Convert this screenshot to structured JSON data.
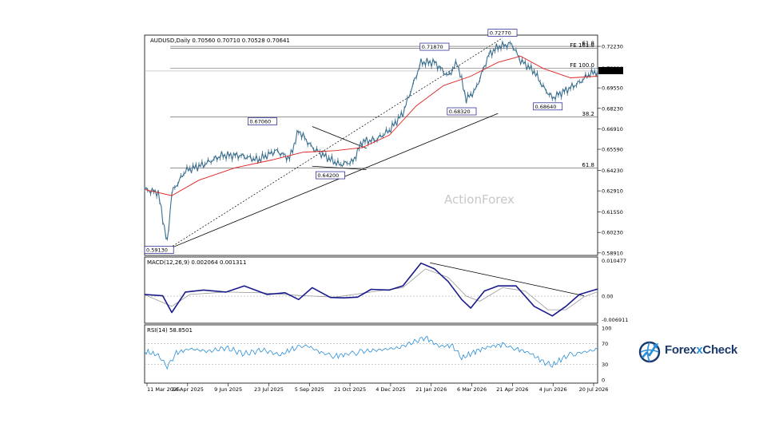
{
  "brand": {
    "name_a": "Forex",
    "name_x": "x",
    "name_b": "Check",
    "icon": "globe-chart-logo-icon"
  },
  "colors": {
    "price": "#3a6e8f",
    "ma": "#e02020",
    "macd": "#1a1a8c",
    "signal": "#9a9a9a",
    "rsi": "#2a8fd8",
    "trend": "#000000"
  },
  "chart_data": [
    {
      "type": "line",
      "title": "AUDUSD,Daily  0.70560 0.70710 0.70528 0.70641",
      "watermark": "ActionForex",
      "symbol": "AUDUSD,Daily",
      "ohlc_header": "0.70560 0.70710 0.70528 0.70641",
      "current_price_label": "0.70641",
      "ylim": [
        0.5885,
        0.7285
      ],
      "y_ticks": [
        "0.72230",
        "0.70810",
        "0.69550",
        "0.68230",
        "0.66910",
        "0.65590",
        "0.64230",
        "0.62910",
        "0.61550",
        "0.60230",
        "0.58910"
      ],
      "x_ticks": [
        "11 Mar 2025",
        "24 Apr 2025",
        "9 Jun 2025",
        "23 Jul 2025",
        "5 Sep 2025",
        "21 Oct 2025",
        "4 Dec 2025",
        "21 Jan 2026",
        "6 Mar 2026",
        "21 Apr 2026",
        "4 Jun 2026",
        "20 Jul 2026"
      ],
      "annotations": [
        {
          "text": "0.59130",
          "x": 0.0,
          "y": 0.5913
        },
        {
          "text": "0.67060",
          "x": 0.26,
          "y": 0.6706
        },
        {
          "text": "0.64200",
          "x": 0.41,
          "y": 0.642
        },
        {
          "text": "0.71870",
          "x": 0.64,
          "y": 0.7187
        },
        {
          "text": "0.68320",
          "x": 0.7,
          "y": 0.6832
        },
        {
          "text": "0.72770",
          "x": 0.79,
          "y": 0.7277
        },
        {
          "text": "0.68640",
          "x": 0.89,
          "y": 0.6864
        }
      ],
      "fib_lines": [
        {
          "label": "61.8",
          "value": 0.7223
        },
        {
          "label": "FE 161.8",
          "value": 0.721
        },
        {
          "label": "FE 100.0",
          "value": 0.7081
        },
        {
          "label": "38.2",
          "value": 0.6768
        },
        {
          "label": "61.8",
          "value": 0.6438
        }
      ],
      "series": [
        {
          "name": "Price",
          "values": [
            [
              0.0,
              0.63
            ],
            [
              0.03,
              0.628
            ],
            [
              0.05,
              0.595
            ],
            [
              0.06,
              0.628
            ],
            [
              0.09,
              0.642
            ],
            [
              0.13,
              0.646
            ],
            [
              0.17,
              0.652
            ],
            [
              0.21,
              0.652
            ],
            [
              0.25,
              0.649
            ],
            [
              0.29,
              0.655
            ],
            [
              0.32,
              0.65
            ],
            [
              0.34,
              0.668
            ],
            [
              0.37,
              0.657
            ],
            [
              0.4,
              0.651
            ],
            [
              0.43,
              0.646
            ],
            [
              0.46,
              0.648
            ],
            [
              0.48,
              0.661
            ],
            [
              0.51,
              0.662
            ],
            [
              0.54,
              0.668
            ],
            [
              0.57,
              0.679
            ],
            [
              0.61,
              0.712
            ],
            [
              0.64,
              0.712
            ],
            [
              0.67,
              0.703
            ],
            [
              0.69,
              0.712
            ],
            [
              0.71,
              0.688
            ],
            [
              0.73,
              0.694
            ],
            [
              0.76,
              0.717
            ],
            [
              0.78,
              0.722
            ],
            [
              0.81,
              0.724
            ],
            [
              0.83,
              0.713
            ],
            [
              0.86,
              0.706
            ],
            [
              0.88,
              0.696
            ],
            [
              0.9,
              0.689
            ],
            [
              0.93,
              0.694
            ],
            [
              0.96,
              0.699
            ],
            [
              0.98,
              0.704
            ],
            [
              1.0,
              0.7064
            ]
          ]
        },
        {
          "name": "MA",
          "values": [
            [
              0.0,
              0.63
            ],
            [
              0.06,
              0.626
            ],
            [
              0.12,
              0.636
            ],
            [
              0.2,
              0.644
            ],
            [
              0.28,
              0.649
            ],
            [
              0.35,
              0.654
            ],
            [
              0.42,
              0.655
            ],
            [
              0.48,
              0.657
            ],
            [
              0.54,
              0.665
            ],
            [
              0.6,
              0.684
            ],
            [
              0.66,
              0.697
            ],
            [
              0.72,
              0.703
            ],
            [
              0.78,
              0.712
            ],
            [
              0.83,
              0.716
            ],
            [
              0.88,
              0.708
            ],
            [
              0.94,
              0.702
            ],
            [
              1.0,
              0.703
            ]
          ]
        }
      ]
    },
    {
      "type": "line",
      "title": "MACD(12,26,9) 0.002064 0.001311",
      "ylim": [
        -0.0075,
        0.0108
      ],
      "y_ticks": [
        "0.010477",
        "0.00",
        "-0.006911"
      ],
      "series": [
        {
          "name": "MACD",
          "values": [
            [
              0.0,
              0.0005
            ],
            [
              0.04,
              0.0001
            ],
            [
              0.06,
              -0.0048
            ],
            [
              0.09,
              0.0012
            ],
            [
              0.13,
              0.0018
            ],
            [
              0.18,
              0.0012
            ],
            [
              0.22,
              0.003
            ],
            [
              0.27,
              0.0005
            ],
            [
              0.31,
              0.001
            ],
            [
              0.34,
              -0.001
            ],
            [
              0.37,
              0.0025
            ],
            [
              0.41,
              -0.0004
            ],
            [
              0.44,
              -0.0005
            ],
            [
              0.47,
              -0.0003
            ],
            [
              0.5,
              0.002
            ],
            [
              0.54,
              0.0018
            ],
            [
              0.57,
              0.003
            ],
            [
              0.61,
              0.0097
            ],
            [
              0.64,
              0.008
            ],
            [
              0.67,
              0.0043
            ],
            [
              0.7,
              -0.001
            ],
            [
              0.72,
              -0.0035
            ],
            [
              0.75,
              0.0015
            ],
            [
              0.78,
              0.003
            ],
            [
              0.82,
              0.003
            ],
            [
              0.86,
              -0.003
            ],
            [
              0.9,
              -0.0058
            ],
            [
              0.93,
              -0.003
            ],
            [
              0.96,
              0.0005
            ],
            [
              1.0,
              0.0021
            ]
          ]
        },
        {
          "name": "Signal",
          "values": [
            [
              0.0,
              0.0004
            ],
            [
              0.06,
              -0.003
            ],
            [
              0.1,
              0.0005
            ],
            [
              0.18,
              0.0012
            ],
            [
              0.26,
              0.001
            ],
            [
              0.34,
              0.0002
            ],
            [
              0.42,
              -0.0003
            ],
            [
              0.5,
              0.0012
            ],
            [
              0.57,
              0.0025
            ],
            [
              0.62,
              0.008
            ],
            [
              0.67,
              0.0055
            ],
            [
              0.71,
              0.0
            ],
            [
              0.74,
              -0.0015
            ],
            [
              0.79,
              0.0025
            ],
            [
              0.84,
              0.0015
            ],
            [
              0.89,
              -0.004
            ],
            [
              0.93,
              -0.004
            ],
            [
              0.97,
              -0.0002
            ],
            [
              1.0,
              0.0013
            ]
          ]
        }
      ]
    },
    {
      "type": "line",
      "title": "RSI(14) 58.8501",
      "ylim": [
        0,
        100
      ],
      "y_ticks": [
        "100",
        "70",
        "30",
        "0"
      ],
      "series": [
        {
          "name": "RSI",
          "values": [
            [
              0.0,
              55
            ],
            [
              0.03,
              48
            ],
            [
              0.05,
              25
            ],
            [
              0.07,
              52
            ],
            [
              0.1,
              60
            ],
            [
              0.14,
              55
            ],
            [
              0.18,
              62
            ],
            [
              0.22,
              50
            ],
            [
              0.26,
              58
            ],
            [
              0.3,
              48
            ],
            [
              0.33,
              62
            ],
            [
              0.36,
              66
            ],
            [
              0.39,
              52
            ],
            [
              0.42,
              46
            ],
            [
              0.45,
              50
            ],
            [
              0.48,
              55
            ],
            [
              0.52,
              58
            ],
            [
              0.56,
              62
            ],
            [
              0.6,
              75
            ],
            [
              0.62,
              82
            ],
            [
              0.65,
              65
            ],
            [
              0.68,
              66
            ],
            [
              0.7,
              42
            ],
            [
              0.73,
              55
            ],
            [
              0.76,
              64
            ],
            [
              0.79,
              68
            ],
            [
              0.82,
              60
            ],
            [
              0.85,
              52
            ],
            [
              0.88,
              35
            ],
            [
              0.9,
              28
            ],
            [
              0.93,
              46
            ],
            [
              0.96,
              52
            ],
            [
              1.0,
              59
            ]
          ]
        }
      ]
    }
  ]
}
